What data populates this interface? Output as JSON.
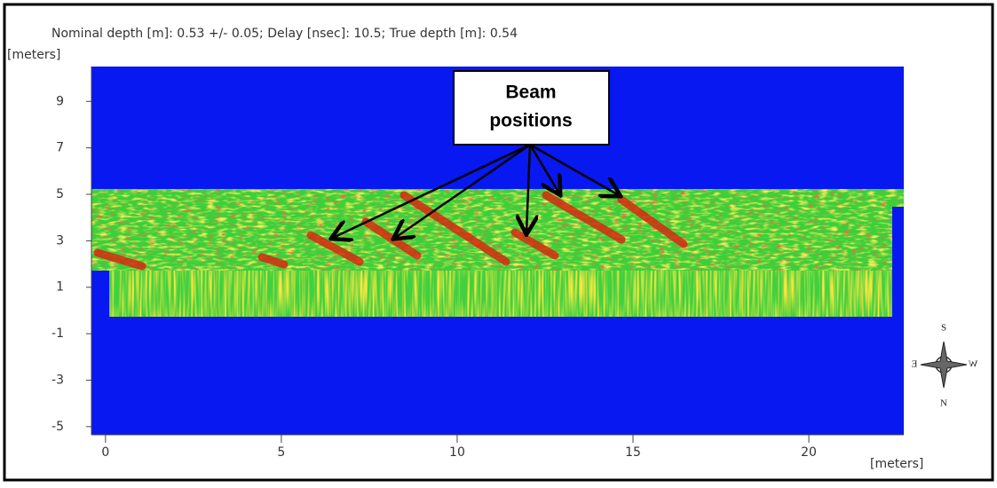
{
  "chart_data": {
    "type": "image",
    "title": "Nominal depth [m]: 0.53 +/- 0.05;   Delay [nsec]: 10.5;   True depth [m]: 0.54",
    "ylabel": "[meters]",
    "xlabel": "[meters]",
    "xlim": [
      -0.4,
      22.7
    ],
    "ylim": [
      -5.35,
      10.5
    ],
    "xticks": [
      0,
      5,
      10,
      15,
      20
    ],
    "yticks": [
      -5,
      -3,
      -1,
      1,
      3,
      5,
      7,
      9
    ],
    "annotation": [
      "Beam",
      "positions"
    ],
    "compass": {
      "top": "S",
      "left": "E",
      "right": "W",
      "bottom": "N"
    }
  }
}
